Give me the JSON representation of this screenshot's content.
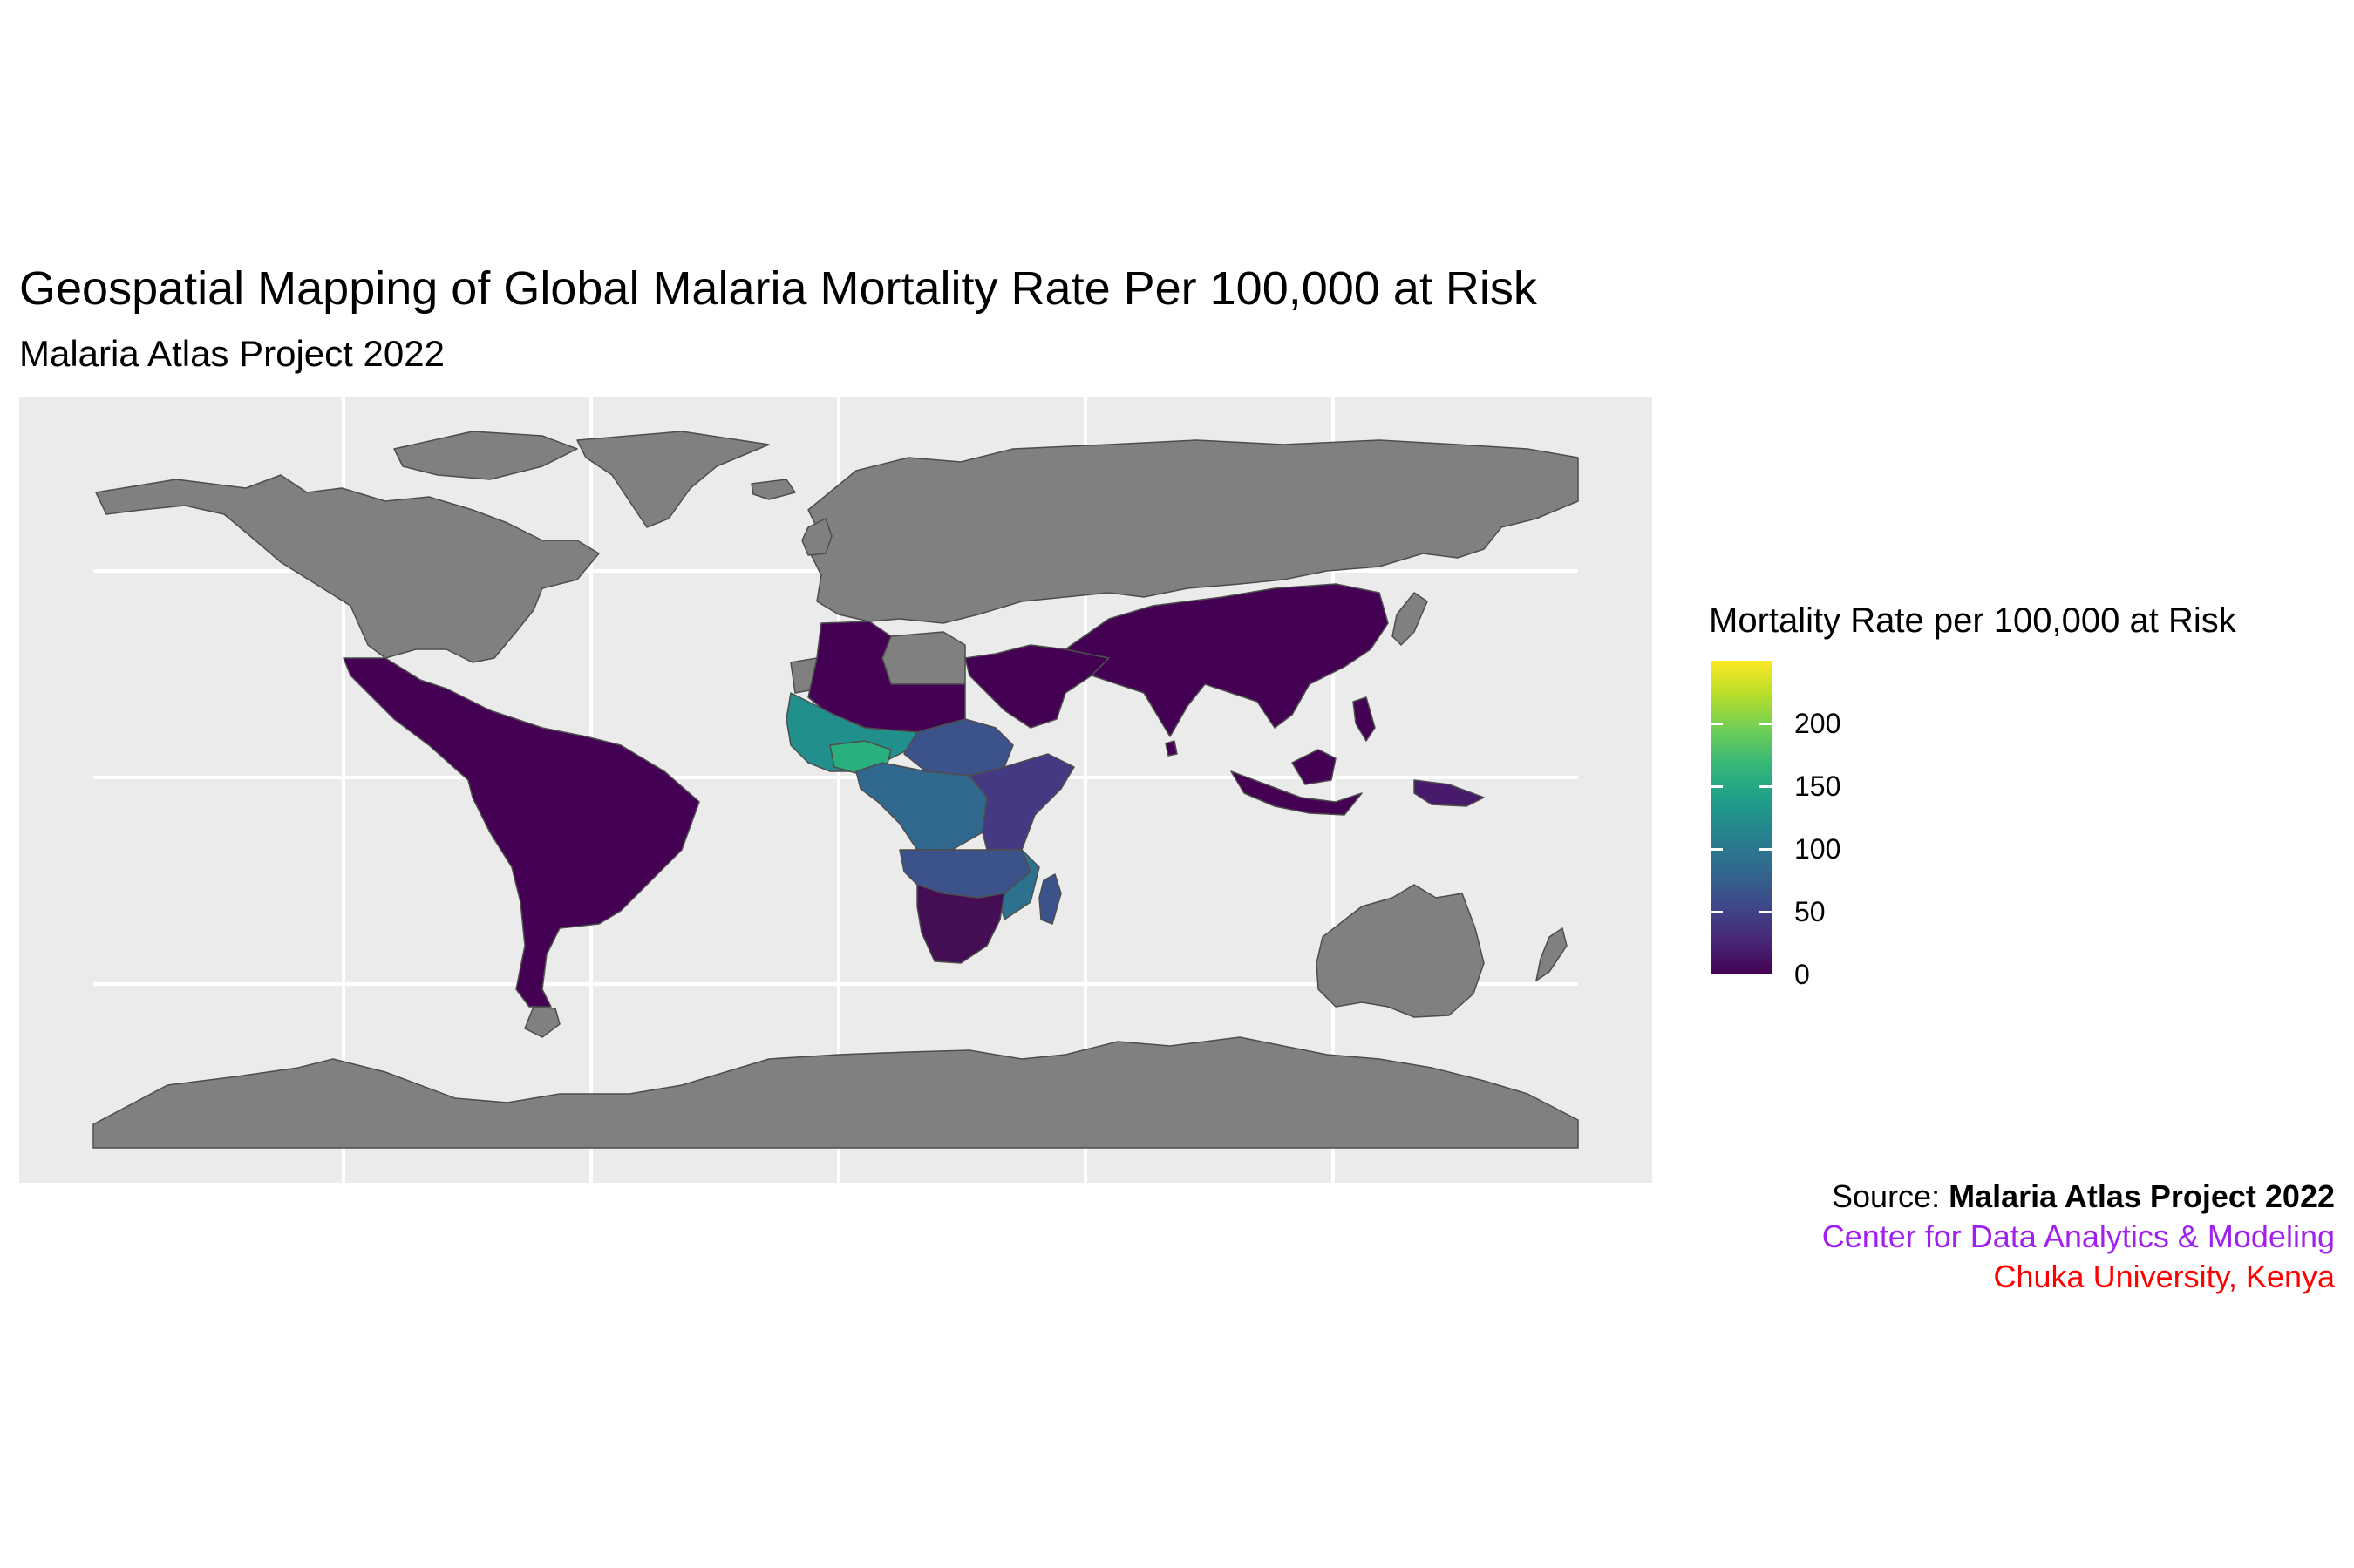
{
  "title": "Geospatial Mapping of Global Malaria Mortality Rate Per 100,000 at Risk",
  "subtitle": "Malaria Atlas Project 2022",
  "legend": {
    "title": "Mortality Rate per 100,000 at Risk",
    "ticks": [
      "0",
      "50",
      "100",
      "150",
      "200"
    ],
    "tick_values": [
      0,
      50,
      100,
      150,
      200
    ],
    "domain": [
      0,
      250
    ],
    "palette": [
      "#440154",
      "#482878",
      "#3e4989",
      "#31688e",
      "#26828e",
      "#1f9e89",
      "#35b779",
      "#6ece58",
      "#b5de2b",
      "#fde725"
    ]
  },
  "caption": {
    "prefix": "Source: ",
    "source_bold": "Malaria Atlas Project 2022",
    "line2": "Center for Data Analytics & Modeling",
    "line3": "Chuka University, Kenya"
  },
  "colors": {
    "panel_bg": "#ebebeb",
    "grid": "#ffffff",
    "no_data": "#808080",
    "border": "#4d4d4d",
    "caption_line2": "#a020f0",
    "caption_line3": "#ff0000"
  },
  "chart_data": {
    "type": "choropleth",
    "projection": "equirectangular",
    "fill_variable": "Mortality Rate per 100,000 at Risk",
    "color_scale": "viridis",
    "scale_range": [
      0,
      250
    ],
    "grid": true,
    "regions_with_data": [
      {
        "region": "West Africa (Sahel)",
        "value": 140
      },
      {
        "region": "Nigeria / Burkina Faso area",
        "value": 160
      },
      {
        "region": "Central Africa",
        "value": 75
      },
      {
        "region": "Chad / Sudan area",
        "value": 55
      },
      {
        "region": "East Africa",
        "value": 45
      },
      {
        "region": "Southern-Central Africa",
        "value": 50
      },
      {
        "region": "Mozambique",
        "value": 70
      },
      {
        "region": "Madagascar",
        "value": 45
      },
      {
        "region": "Southern Africa",
        "value": 8
      },
      {
        "region": "North Africa",
        "value": 2
      },
      {
        "region": "Latin America",
        "value": 2
      },
      {
        "region": "South & Southeast Asia",
        "value": 3
      },
      {
        "region": "Middle East",
        "value": 1
      },
      {
        "region": "Papua New Guinea",
        "value": 20
      }
    ],
    "no_data_regions": [
      "North America",
      "Europe",
      "Russia",
      "Australia",
      "Antarctica",
      "Greenland"
    ]
  }
}
